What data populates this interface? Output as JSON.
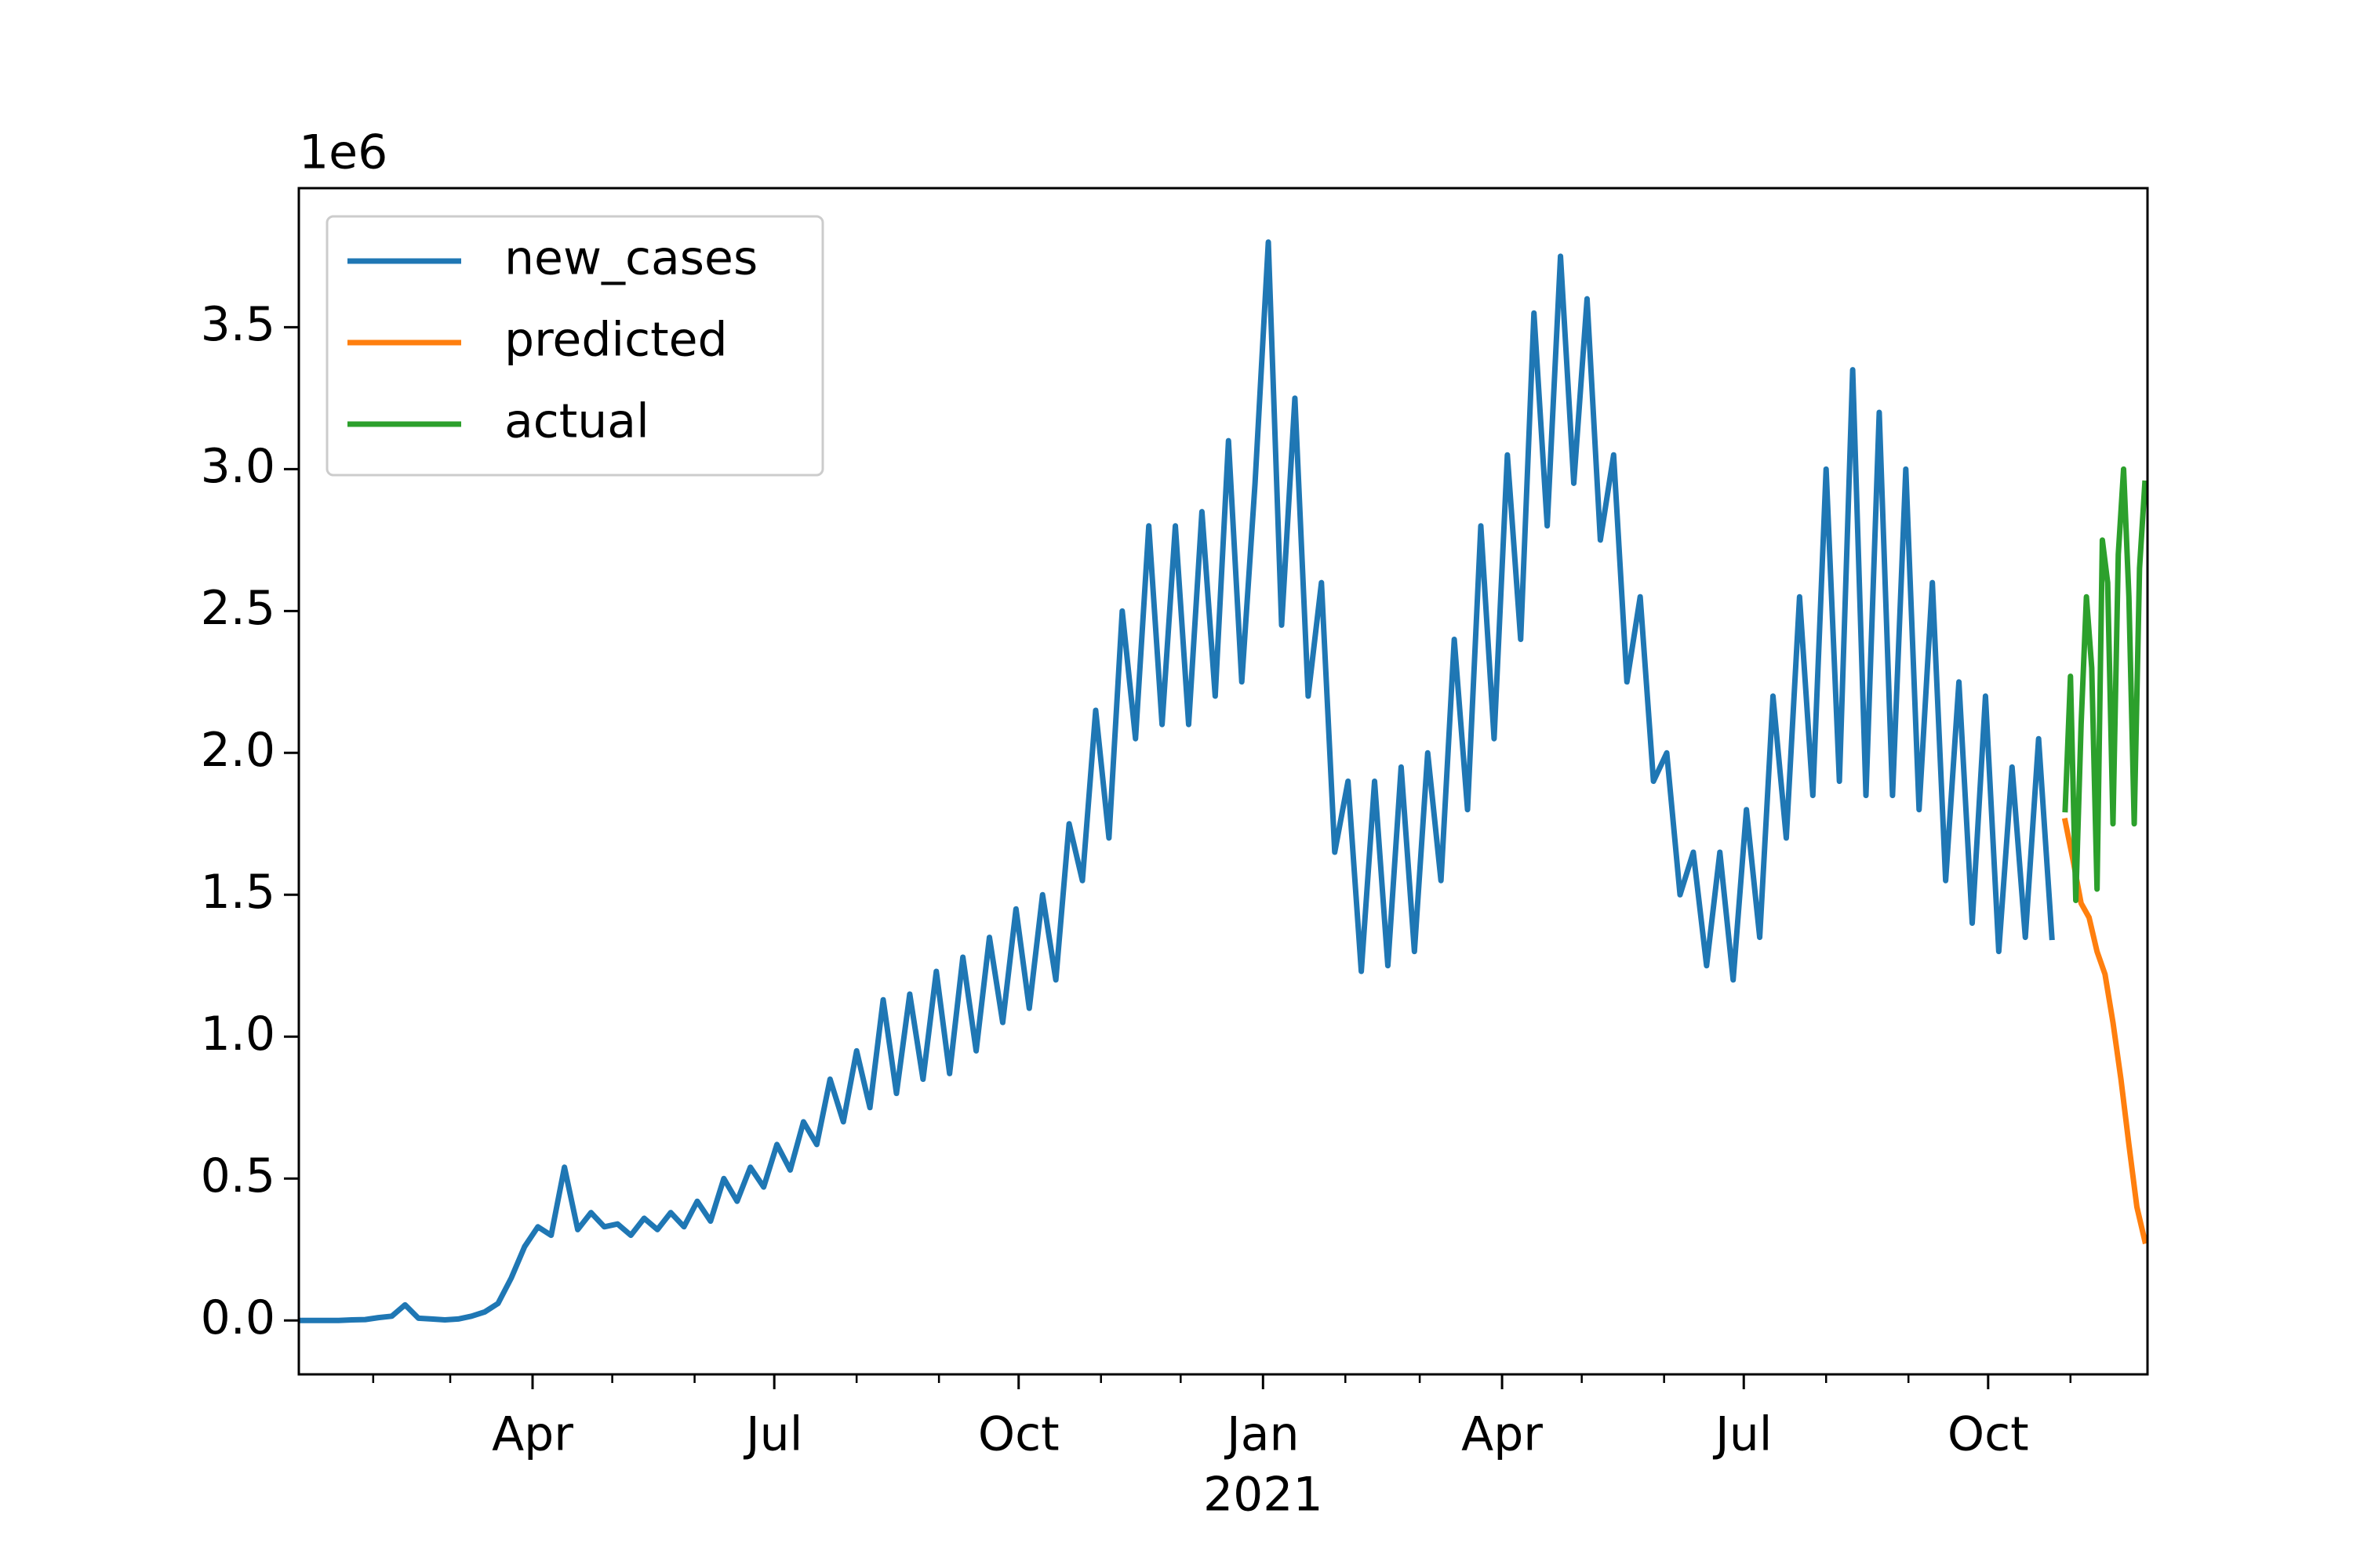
{
  "chart_data": {
    "type": "line",
    "y_offset_label": "1e6",
    "xlim": [
      3,
      699
    ],
    "xticks": [
      {
        "value": 91,
        "label": "Apr"
      },
      {
        "value": 182,
        "label": "Jul"
      },
      {
        "value": 274,
        "label": "Oct"
      },
      {
        "value": 366,
        "label": "Jan"
      },
      {
        "value": 456,
        "label": "Apr"
      },
      {
        "value": 547,
        "label": "Jul"
      },
      {
        "value": 639,
        "label": "Oct"
      }
    ],
    "x_year_label": {
      "value": 366,
      "label": "2021"
    },
    "x_minor_ticks": [
      31,
      60,
      121,
      152,
      213,
      244,
      305,
      335,
      397,
      425,
      486,
      517,
      578,
      609,
      670
    ],
    "ylim": [
      -190000,
      3990000
    ],
    "yticks": [
      {
        "value": 0,
        "label": "0.0"
      },
      {
        "value": 500000,
        "label": "0.5"
      },
      {
        "value": 1000000,
        "label": "1.0"
      },
      {
        "value": 1500000,
        "label": "1.5"
      },
      {
        "value": 2000000,
        "label": "2.0"
      },
      {
        "value": 2500000,
        "label": "2.5"
      },
      {
        "value": 3000000,
        "label": "3.0"
      },
      {
        "value": 3500000,
        "label": "3.5"
      }
    ],
    "grid": false,
    "legend": "upper left",
    "series": [
      {
        "name": "new_cases",
        "color": "#1f77b4",
        "x": [
          3,
          8,
          13,
          18,
          23,
          28,
          33,
          38,
          43,
          48,
          53,
          58,
          63,
          68,
          73,
          78,
          83,
          88,
          93,
          98,
          103,
          108,
          113,
          118,
          123,
          128,
          133,
          138,
          143,
          148,
          153,
          158,
          163,
          168,
          173,
          178,
          183,
          188,
          193,
          198,
          203,
          208,
          213,
          218,
          223,
          228,
          233,
          238,
          243,
          248,
          253,
          258,
          263,
          268,
          273,
          278,
          283,
          288,
          293,
          298,
          303,
          308,
          313,
          318,
          323,
          328,
          333,
          338,
          343,
          348,
          353,
          358,
          363,
          368,
          373,
          378,
          383,
          388,
          393,
          398,
          403,
          408,
          413,
          418,
          423,
          428,
          433,
          438,
          443,
          448,
          453,
          458,
          463,
          468,
          473,
          478,
          483,
          488,
          493,
          498,
          503,
          508,
          513,
          518,
          523,
          528,
          533,
          538,
          543,
          548,
          553,
          558,
          563,
          568,
          573,
          578,
          583,
          588,
          593,
          598,
          603,
          608,
          613,
          618,
          623,
          628,
          633,
          638,
          643,
          648,
          653,
          658,
          663
        ],
        "values": [
          0,
          0,
          0,
          0,
          2000,
          3000,
          10000,
          15000,
          55000,
          8000,
          5000,
          2000,
          5000,
          15000,
          30000,
          60000,
          150000,
          260000,
          330000,
          300000,
          540000,
          320000,
          380000,
          330000,
          340000,
          300000,
          360000,
          320000,
          380000,
          330000,
          420000,
          350000,
          500000,
          420000,
          540000,
          470000,
          620000,
          530000,
          700000,
          620000,
          850000,
          700000,
          950000,
          750000,
          1130000,
          800000,
          1150000,
          850000,
          1230000,
          870000,
          1280000,
          950000,
          1350000,
          1050000,
          1450000,
          1100000,
          1500000,
          1200000,
          1750000,
          1550000,
          2150000,
          1700000,
          2500000,
          2050000,
          2800000,
          2100000,
          2800000,
          2100000,
          2850000,
          2200000,
          3100000,
          2250000,
          2950000,
          3800000,
          2450000,
          3250000,
          2200000,
          2600000,
          1650000,
          1900000,
          1230000,
          1900000,
          1250000,
          1950000,
          1300000,
          2000000,
          1550000,
          2400000,
          1800000,
          2800000,
          2050000,
          3050000,
          2400000,
          3550000,
          2800000,
          3750000,
          2950000,
          3600000,
          2750000,
          3050000,
          2250000,
          2550000,
          1900000,
          2000000,
          1500000,
          1650000,
          1250000,
          1650000,
          1200000,
          1800000,
          1350000,
          2200000,
          1700000,
          2550000,
          1850000,
          3000000,
          1900000,
          3350000,
          1850000,
          3200000,
          1850000,
          3000000,
          1800000,
          2600000,
          1550000,
          2250000,
          1400000,
          2200000,
          1300000,
          1950000,
          1350000,
          2050000,
          1350000
        ]
      },
      {
        "name": "predicted",
        "color": "#ff7f0e",
        "x": [
          668,
          671,
          674,
          677,
          680,
          683,
          686,
          689,
          692,
          695,
          698
        ],
        "values": [
          1760000,
          1620000,
          1470000,
          1420000,
          1300000,
          1220000,
          1050000,
          850000,
          620000,
          400000,
          280000
        ]
      },
      {
        "name": "actual",
        "color": "#2ca02c",
        "x": [
          668,
          670,
          672,
          674,
          676,
          678,
          680,
          682,
          684,
          686,
          688,
          690,
          692,
          694,
          696,
          698
        ],
        "values": [
          1800000,
          2270000,
          1480000,
          2100000,
          2550000,
          2300000,
          1520000,
          2750000,
          2600000,
          1750000,
          2700000,
          3000000,
          2550000,
          1750000,
          2650000,
          2950000
        ]
      }
    ]
  }
}
